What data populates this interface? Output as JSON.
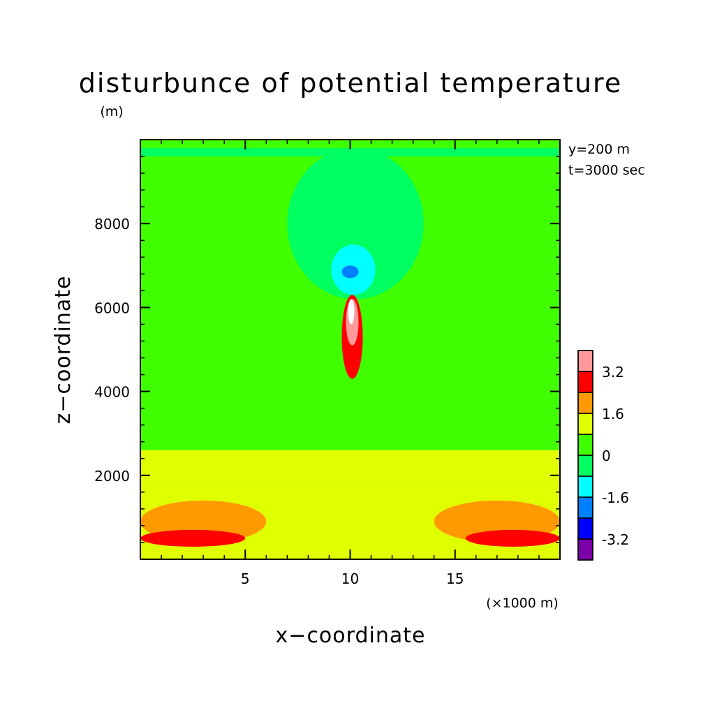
{
  "chart_data": {
    "type": "heatmap",
    "title": "disturbunce of potential temperature",
    "xlabel": "x−coordinate",
    "ylabel": "z−coordinate",
    "x_unit": "(×1000 m)",
    "y_unit": "(m)",
    "annotations": [
      "y=200 m",
      "t=3000 sec"
    ],
    "xlim": [
      0,
      20
    ],
    "ylim": [
      0,
      10000
    ],
    "x_ticks": [
      5,
      10,
      15
    ],
    "y_ticks": [
      2000,
      4000,
      6000,
      8000
    ],
    "x_tick_labels": [
      "5",
      "10",
      "15"
    ],
    "y_tick_labels": [
      "2000",
      "4000",
      "6000",
      "8000"
    ],
    "colorbar": {
      "levels": [
        -4.0,
        -3.2,
        -2.4,
        -1.6,
        -0.8,
        0,
        0.8,
        1.6,
        2.4,
        3.2,
        4.0
      ],
      "colors": [
        "#7b00aa",
        "#0000ff",
        "#0080ff",
        "#00ffff",
        "#00ff60",
        "#40ff00",
        "#e0ff00",
        "#ff9900",
        "#ff0000",
        "#ff9999"
      ],
      "labels": [
        "-3.2",
        "-1.6",
        "0",
        "1.6",
        "3.2"
      ],
      "label_values": [
        -3.2,
        -1.6,
        0,
        1.6,
        3.2
      ],
      "extreme_color": "#ffffff"
    },
    "fields": {
      "background_value": 0.4,
      "features": [
        {
          "x": [
            0,
            20
          ],
          "z": [
            0,
            1800
          ],
          "value": 1.2
        },
        {
          "x": [
            0,
            20
          ],
          "z": [
            1800,
            2600
          ],
          "value": 1.0
        },
        {
          "x": [
            0,
            20
          ],
          "z": [
            9600,
            9800
          ],
          "value": -0.4
        },
        {
          "x": [
            7,
            13.5
          ],
          "z": [
            6200,
            9800
          ],
          "value": -0.4
        },
        {
          "x": [
            0,
            6
          ],
          "z": [
            400,
            1400
          ],
          "value": 2.0
        },
        {
          "x": [
            14,
            20
          ],
          "z": [
            400,
            1400
          ],
          "value": 2.0
        },
        {
          "x": [
            0,
            5
          ],
          "z": [
            300,
            700
          ],
          "value": 2.8
        },
        {
          "x": [
            15.5,
            20
          ],
          "z": [
            300,
            700
          ],
          "value": 2.8
        },
        {
          "x": [
            9.6,
            10.6
          ],
          "z": [
            4300,
            6300
          ],
          "value": 2.8
        },
        {
          "x": [
            9.8,
            10.4
          ],
          "z": [
            5100,
            6200
          ],
          "value": 3.6
        },
        {
          "x": [
            9.9,
            10.2
          ],
          "z": [
            5600,
            6200
          ],
          "value": 4.2
        },
        {
          "x": [
            9.1,
            11.2
          ],
          "z": [
            6300,
            7500
          ],
          "value": -1.2
        },
        {
          "x": [
            9.6,
            10.4
          ],
          "z": [
            6700,
            7000
          ],
          "value": -2.0
        }
      ]
    }
  }
}
